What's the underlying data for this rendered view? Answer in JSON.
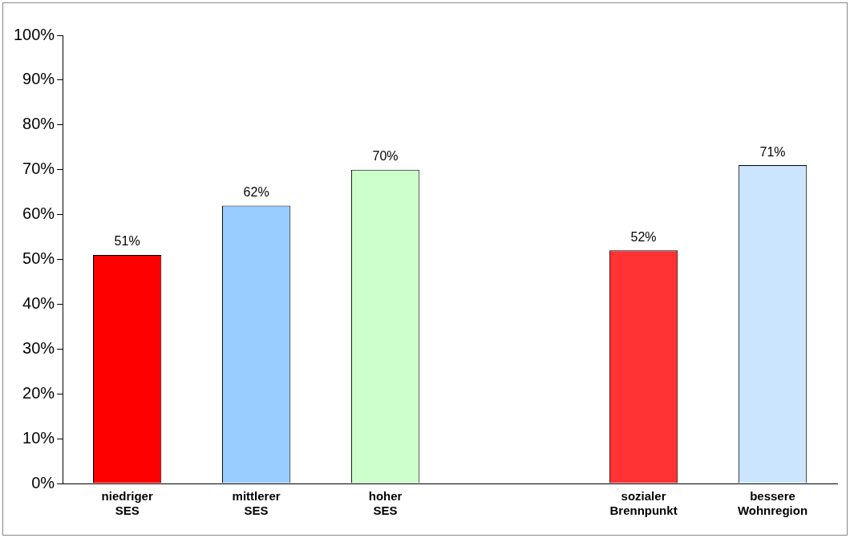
{
  "chart_data": {
    "type": "bar",
    "categories": [
      "niedriger SES",
      "mittlerer SES",
      "hoher SES",
      null,
      "sozialer Brennpunkt",
      "bessere Wohnregion"
    ],
    "values": [
      51,
      62,
      70,
      null,
      52,
      71
    ],
    "value_labels": [
      "51%",
      "62%",
      "70%",
      null,
      "52%",
      "71%"
    ],
    "colors": [
      "#ff0000",
      "#99ccff",
      "#ccffcc",
      "#ffffff",
      "#ff3333",
      "#cce5ff"
    ],
    "ylim": [
      0,
      100
    ],
    "yticks": [
      {
        "value": 0,
        "label": "0%"
      },
      {
        "value": 10,
        "label": "10%"
      },
      {
        "value": 20,
        "label": "20%"
      },
      {
        "value": 30,
        "label": "30%"
      },
      {
        "value": 40,
        "label": "40%"
      },
      {
        "value": 50,
        "label": "50%"
      },
      {
        "value": 60,
        "label": "60%"
      },
      {
        "value": 70,
        "label": "70%"
      },
      {
        "value": 80,
        "label": "80%"
      },
      {
        "value": 90,
        "label": "90%"
      },
      {
        "value": 100,
        "label": "100%"
      }
    ],
    "grid": false,
    "legend": false
  }
}
